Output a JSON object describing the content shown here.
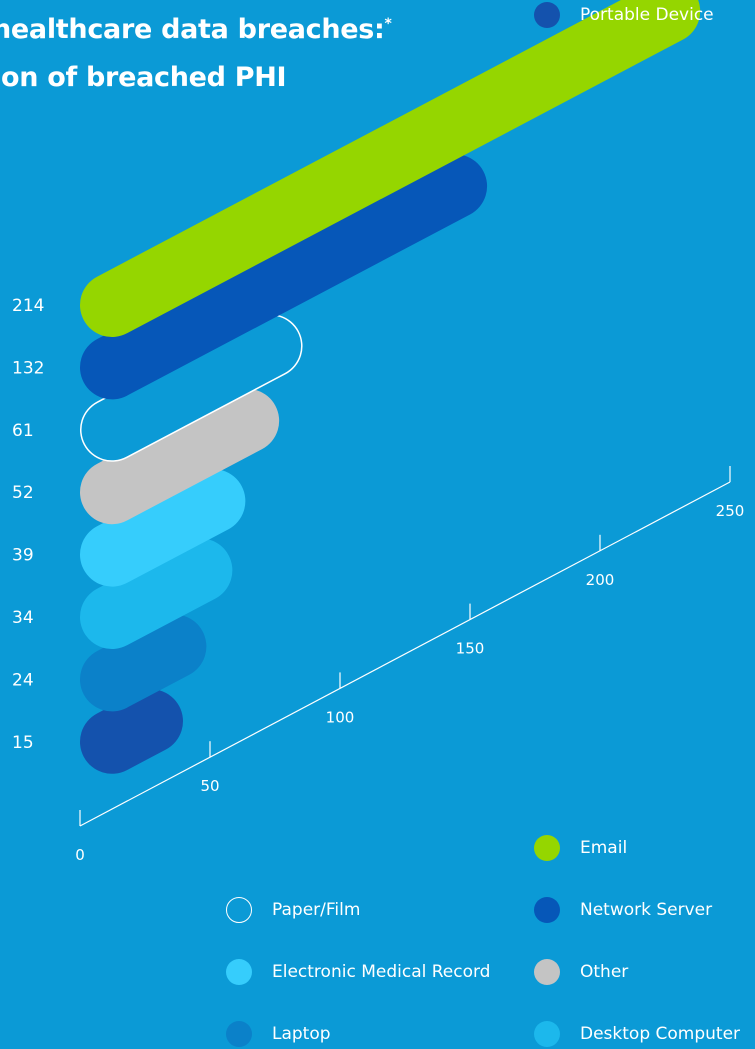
{
  "title": {
    "line1": "healthcare data breaches:",
    "line1_mark": "*",
    "line2": "ion of breached PHI"
  },
  "colors": {
    "background": "#0b9ad6",
    "email": "#95d600",
    "network_server": "#0657b8",
    "paper_film": "transparent",
    "other": "#c4c4c4",
    "electronic_medical_record": "#36cdfc",
    "desktop_computer": "#1cb8ec",
    "laptop": "#0b81c9",
    "portable_device": "#1452ad"
  },
  "chart_data": {
    "type": "bar",
    "categories": [
      "Email",
      "Network Server",
      "Paper/Film",
      "Other",
      "Electronic Medical Record",
      "Desktop Computer",
      "Laptop",
      "Portable Device"
    ],
    "values": [
      214,
      132,
      61,
      52,
      39,
      34,
      24,
      15
    ],
    "value_labels": [
      "214",
      "132",
      "61",
      "52",
      "39",
      "34",
      "24",
      "15"
    ],
    "axis": {
      "ticks": [
        0,
        50,
        100,
        150,
        200,
        250
      ],
      "tick_labels": [
        "0",
        "50",
        "100",
        "150",
        "200",
        "250"
      ],
      "range": [
        0,
        250
      ]
    },
    "legend": [
      {
        "label": "Paper/Film",
        "color": "transparent",
        "outline": true
      },
      {
        "label": "Electronic Medical Record",
        "color": "#36cdfc"
      },
      {
        "label": "Laptop",
        "color": "#0b81c9"
      },
      {
        "label": "Email",
        "color": "#95d600"
      },
      {
        "label": "Network Server",
        "color": "#0657b8"
      },
      {
        "label": "Other",
        "color": "#c4c4c4"
      },
      {
        "label": "Desktop Computer",
        "color": "#1cb8ec"
      },
      {
        "label": "Portable Device",
        "color": "#1452ad"
      }
    ],
    "legend_placement": "bottom"
  }
}
